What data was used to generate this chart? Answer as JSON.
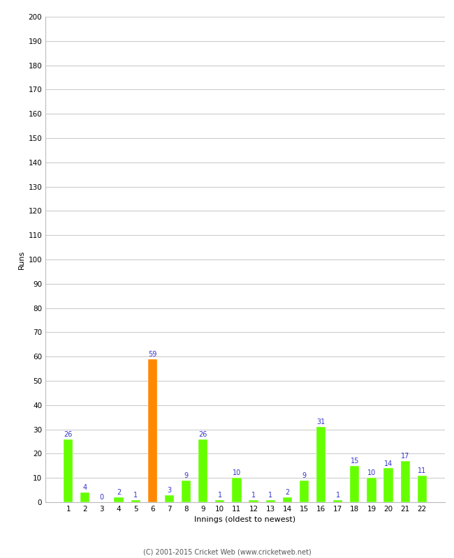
{
  "xlabel": "Innings (oldest to newest)",
  "ylabel": "Runs",
  "ylim": [
    0,
    200
  ],
  "yticks": [
    0,
    10,
    20,
    30,
    40,
    50,
    60,
    70,
    80,
    90,
    100,
    110,
    120,
    130,
    140,
    150,
    160,
    170,
    180,
    190,
    200
  ],
  "categories": [
    "1",
    "2",
    "3",
    "4",
    "5",
    "6",
    "7",
    "8",
    "9",
    "10",
    "11",
    "12",
    "13",
    "14",
    "15",
    "16",
    "17",
    "18",
    "19",
    "20",
    "21",
    "22"
  ],
  "values": [
    26,
    4,
    0,
    2,
    1,
    59,
    3,
    9,
    26,
    1,
    10,
    1,
    1,
    2,
    9,
    31,
    1,
    15,
    10,
    14,
    17,
    11
  ],
  "bar_colors": [
    "#66ff00",
    "#66ff00",
    "#66ff00",
    "#66ff00",
    "#66ff00",
    "#ff8800",
    "#66ff00",
    "#66ff00",
    "#66ff00",
    "#66ff00",
    "#66ff00",
    "#66ff00",
    "#66ff00",
    "#66ff00",
    "#66ff00",
    "#66ff00",
    "#66ff00",
    "#66ff00",
    "#66ff00",
    "#66ff00",
    "#66ff00",
    "#66ff00"
  ],
  "label_color": "#3333cc",
  "background_color": "#ffffff",
  "footer": "(C) 2001-2015 Cricket Web (www.cricketweb.net)",
  "bar_width": 0.55,
  "tick_fontsize": 7.5,
  "label_fontsize": 7,
  "axis_label_fontsize": 8,
  "footer_fontsize": 7
}
